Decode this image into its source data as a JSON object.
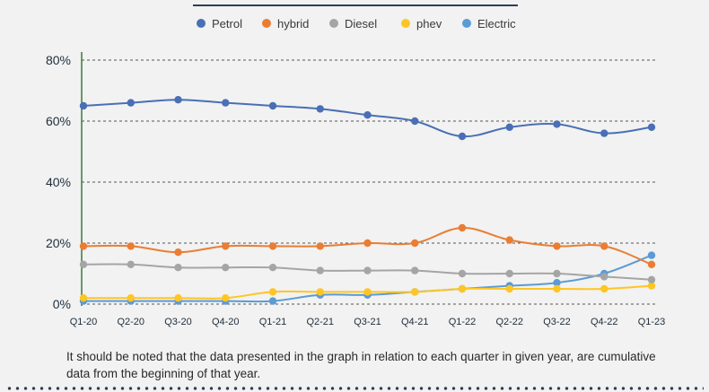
{
  "chart_data": {
    "type": "line",
    "categories": [
      "Q1-20",
      "Q2-20",
      "Q3-20",
      "Q4-20",
      "Q1-21",
      "Q2-21",
      "Q3-21",
      "Q4-21",
      "Q1-22",
      "Q2-22",
      "Q3-22",
      "Q4-22",
      "Q1-23"
    ],
    "yticks": [
      "0%",
      "20%",
      "40%",
      "60%",
      "80%"
    ],
    "ytick_values": [
      0,
      20,
      40,
      60,
      80
    ],
    "ylim": [
      0,
      80
    ],
    "grid": "horizontal dashed",
    "legend_position": "top",
    "series": [
      {
        "name": "Petrol",
        "color": "#4a6fb5",
        "values": [
          65,
          66,
          67,
          66,
          65,
          64,
          62,
          60,
          55,
          58,
          59,
          56,
          58
        ]
      },
      {
        "name": "hybrid",
        "color": "#ea7d33",
        "values": [
          19,
          19,
          17,
          19,
          19,
          19,
          20,
          20,
          25,
          21,
          19,
          19,
          13
        ]
      },
      {
        "name": "Diesel",
        "color": "#a5a5a5",
        "values": [
          13,
          13,
          12,
          12,
          12,
          11,
          11,
          11,
          10,
          10,
          10,
          9,
          8
        ]
      },
      {
        "name": "phev",
        "color": "#ffc524",
        "values": [
          2,
          2,
          2,
          2,
          4,
          4,
          4,
          4,
          5,
          5,
          5,
          5,
          6
        ]
      },
      {
        "name": "Electric",
        "color": "#5b9bd5",
        "values": [
          1,
          1,
          1,
          1,
          1,
          3,
          3,
          4,
          5,
          6,
          7,
          10,
          16
        ]
      }
    ]
  },
  "footnote": "It should be noted that the data presented in the graph in relation to each quarter in given year, are cumulative data from the beginning of that year."
}
